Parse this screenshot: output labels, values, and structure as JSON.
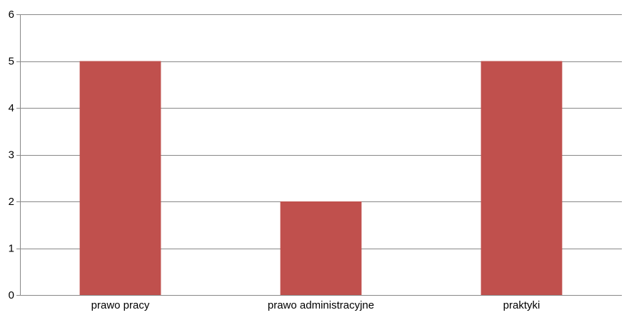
{
  "chart_data": {
    "type": "bar",
    "categories": [
      "prawo pracy",
      "prawo administracyjne",
      "praktyki"
    ],
    "values": [
      5,
      2,
      5
    ],
    "ylim": [
      0,
      6
    ],
    "yticks": [
      0,
      1,
      2,
      3,
      4,
      5,
      6
    ],
    "grid": true,
    "legend": "none",
    "title": "",
    "xlabel": "",
    "ylabel": "",
    "colors": {
      "bar": "#c0504d",
      "grid": "#888888",
      "axis": "#888888"
    }
  }
}
